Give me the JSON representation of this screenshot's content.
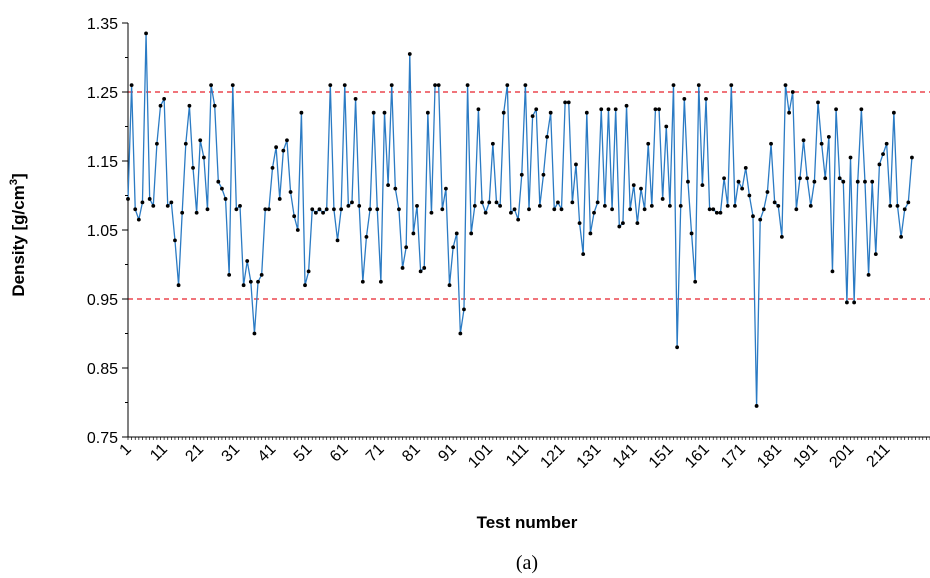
{
  "chart_data": {
    "type": "line",
    "xlabel": "Test number",
    "ylabel": "Density  [g/cm",
    "ylabel_superscript": "3",
    "ylabel_close": "]",
    "caption": "(a)",
    "ylim": [
      0.75,
      1.35
    ],
    "xlim": [
      1,
      223
    ],
    "y_ticks": [
      "0.75",
      "0.85",
      "0.95",
      "1.05",
      "1.15",
      "1.25",
      "1.35"
    ],
    "x_ticks": [
      "1",
      "11",
      "21",
      "31",
      "41",
      "51",
      "61",
      "71",
      "81",
      "91",
      "101",
      "111",
      "121",
      "131",
      "141",
      "151",
      "161",
      "171",
      "181",
      "191",
      "201",
      "211"
    ],
    "reference_lines": [
      {
        "y": 1.25,
        "color": "#e8202a",
        "style": "dashed"
      },
      {
        "y": 0.95,
        "color": "#e8202a",
        "style": "dashed"
      }
    ],
    "series": [
      {
        "line_color": "#2b7bc4",
        "marker_color": "#000000",
        "values": [
          1.095,
          1.26,
          1.08,
          1.065,
          1.09,
          1.335,
          1.095,
          1.085,
          1.175,
          1.23,
          1.24,
          1.085,
          1.09,
          1.035,
          0.97,
          1.075,
          1.175,
          1.23,
          1.14,
          1.075,
          1.18,
          1.155,
          1.08,
          1.26,
          1.23,
          1.12,
          1.11,
          1.095,
          0.985,
          1.26,
          1.08,
          1.085,
          0.97,
          1.005,
          0.975,
          0.9,
          0.975,
          0.985,
          1.08,
          1.08,
          1.14,
          1.17,
          1.095,
          1.165,
          1.18,
          1.105,
          1.07,
          1.05,
          1.22,
          0.97,
          0.99,
          1.08,
          1.075,
          1.08,
          1.075,
          1.08,
          1.26,
          1.08,
          1.035,
          1.08,
          1.26,
          1.085,
          1.09,
          1.24,
          1.085,
          0.975,
          1.04,
          1.08,
          1.22,
          1.08,
          0.975,
          1.22,
          1.115,
          1.26,
          1.11,
          1.08,
          0.995,
          1.025,
          1.305,
          1.045,
          1.085,
          0.99,
          0.995,
          1.22,
          1.075,
          1.26,
          1.26,
          1.08,
          1.11,
          0.97,
          1.025,
          1.045,
          0.9,
          0.935,
          1.26,
          1.045,
          1.085,
          1.225,
          1.09,
          1.075,
          1.09,
          1.175,
          1.09,
          1.085,
          1.22,
          1.26,
          1.075,
          1.08,
          1.065,
          1.13,
          1.26,
          1.08,
          1.215,
          1.225,
          1.085,
          1.13,
          1.185,
          1.22,
          1.08,
          1.09,
          1.08,
          1.235,
          1.235,
          1.09,
          1.145,
          1.06,
          1.015,
          1.22,
          1.045,
          1.075,
          1.09,
          1.225,
          1.085,
          1.225,
          1.08,
          1.225,
          1.055,
          1.06,
          1.23,
          1.08,
          1.115,
          1.06,
          1.11,
          1.08,
          1.175,
          1.085,
          1.225,
          1.225,
          1.095,
          1.2,
          1.085,
          1.26,
          0.88,
          1.085,
          1.24,
          1.12,
          1.045,
          0.975,
          1.26,
          1.115,
          1.24,
          1.08,
          1.08,
          1.075,
          1.075,
          1.125,
          1.085,
          1.26,
          1.085,
          1.12,
          1.11,
          1.14,
          1.1,
          1.07,
          0.795,
          1.065,
          1.08,
          1.105,
          1.175,
          1.09,
          1.085,
          1.04,
          1.26,
          1.22,
          1.25,
          1.08,
          1.125,
          1.18,
          1.125,
          1.085,
          1.12,
          1.235,
          1.175,
          1.125,
          1.185,
          0.99,
          1.225,
          1.125,
          1.12,
          0.945,
          1.155,
          0.945,
          1.12,
          1.225,
          1.12,
          0.985,
          1.12,
          1.015,
          1.145,
          1.16,
          1.175,
          1.085,
          1.22,
          1.085,
          1.04,
          1.08,
          1.09,
          1.155
        ]
      }
    ]
  }
}
